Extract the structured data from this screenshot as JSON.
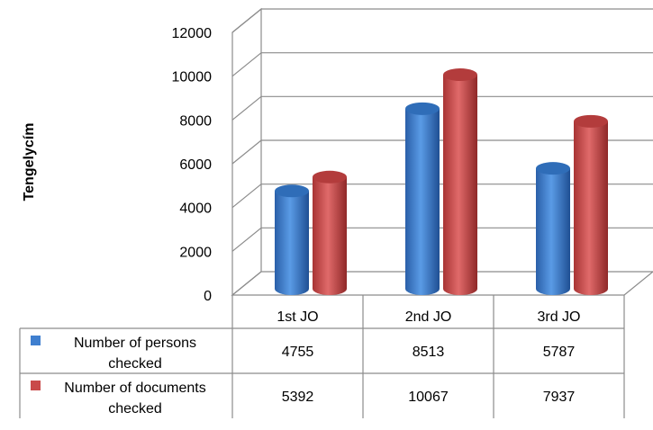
{
  "chart_data": {
    "type": "bar",
    "categories": [
      "1st JO",
      "2nd JO",
      "3rd JO"
    ],
    "series": [
      {
        "name": "Number of persons checked",
        "values": [
          4755,
          8513,
          5787
        ],
        "color": "#3f7fcf"
      },
      {
        "name": "Number of documents checked",
        "values": [
          5392,
          10067,
          7937
        ],
        "color": "#c94a4a"
      }
    ],
    "ylabel": "Tengelycím",
    "ylim": [
      0,
      12000
    ],
    "yticks": [
      "0",
      "2000",
      "4000",
      "6000",
      "8000",
      "10000",
      "12000"
    ],
    "grid": true,
    "legend": "data-table-left"
  }
}
